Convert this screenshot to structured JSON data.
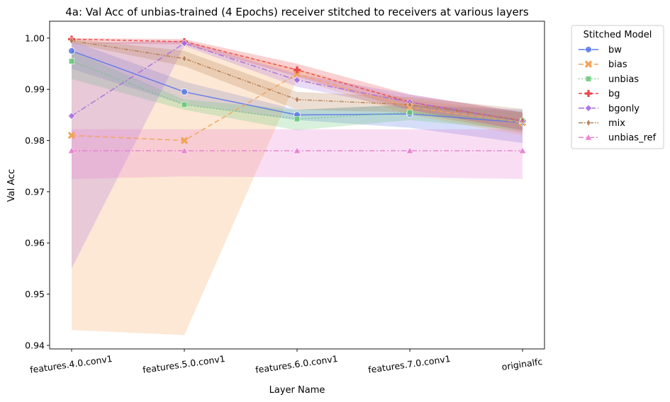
{
  "chart_data": {
    "type": "line",
    "title": "4a: Val Acc of unbias-trained (4 Epochs) receiver stitched to receivers at various layers",
    "xlabel": "Layer Name",
    "ylabel": "Val Acc",
    "categories": [
      "features.4.0.conv1",
      "features.5.0.conv1",
      "features.6.0.conv1",
      "features.7.0.conv1",
      "originalfc"
    ],
    "ylim": [
      0.9393,
      1.0033
    ],
    "yticks": [
      0.94,
      0.95,
      0.96,
      0.97,
      0.98,
      0.99,
      1.0
    ],
    "ytick_labels": [
      "0.94",
      "0.95",
      "0.96",
      "0.97",
      "0.98",
      "0.99",
      "1.00"
    ],
    "grid": false,
    "legend": {
      "title": "Stitched Model",
      "placement": "outside-right"
    },
    "series": [
      {
        "name": "bw",
        "color": "#5b79e6",
        "dash": "",
        "marker": "circle",
        "values": [
          0.9975,
          0.9895,
          0.985,
          0.9852,
          0.9835
        ],
        "lower": [
          0.994,
          0.987,
          0.984,
          0.9825,
          0.9795
        ],
        "upper": [
          0.9995,
          0.9915,
          0.986,
          0.987,
          0.986
        ]
      },
      {
        "name": "bias",
        "color": "#f4a259",
        "dash": "7,4",
        "marker": "x",
        "values": [
          0.981,
          0.98,
          0.993,
          0.9865,
          0.9835
        ],
        "lower": [
          0.943,
          0.942,
          0.992,
          0.985,
          0.981
        ],
        "upper": [
          0.999,
          0.9995,
          0.994,
          0.988,
          0.9855
        ]
      },
      {
        "name": "unbias",
        "color": "#62c872",
        "dash": "1.5,3",
        "marker": "square",
        "values": [
          0.9955,
          0.987,
          0.9842,
          0.9855,
          0.9838
        ],
        "lower": [
          0.992,
          0.986,
          0.982,
          0.984,
          0.982
        ],
        "upper": [
          0.9975,
          0.988,
          0.986,
          0.987,
          0.9855
        ]
      },
      {
        "name": "bg",
        "color": "#e9474d",
        "dash": "5,3",
        "marker": "plus",
        "values": [
          0.9998,
          0.9993,
          0.9938,
          0.9875,
          0.9838
        ],
        "lower": [
          0.999,
          0.9988,
          0.9925,
          0.986,
          0.982
        ],
        "upper": [
          1.0,
          0.9998,
          0.995,
          0.989,
          0.9855
        ]
      },
      {
        "name": "bgonly",
        "color": "#a66be0",
        "dash": "8,3,2,3",
        "marker": "diamond",
        "values": [
          0.9848,
          0.999,
          0.9918,
          0.9875,
          0.9838
        ],
        "lower": [
          0.955,
          0.9985,
          0.9905,
          0.986,
          0.982
        ],
        "upper": [
          0.999,
          0.9995,
          0.993,
          0.989,
          0.9855
        ]
      },
      {
        "name": "mix",
        "color": "#b57a4e",
        "dash": "6,2,1.5,2,1.5,2",
        "marker": "thin-diamond",
        "values": [
          0.9995,
          0.996,
          0.988,
          0.987,
          0.984
        ],
        "lower": [
          0.999,
          0.9945,
          0.986,
          0.9855,
          0.9815
        ],
        "upper": [
          0.9999,
          0.9975,
          0.9895,
          0.9885,
          0.9862
        ]
      },
      {
        "name": "unbias_ref",
        "color": "#e87bcf",
        "dash": "7,3,2,3",
        "marker": "triangle",
        "values": [
          0.978,
          0.978,
          0.978,
          0.978,
          0.978
        ],
        "lower": [
          0.9725,
          0.973,
          0.9728,
          0.9728,
          0.9725
        ],
        "upper": [
          0.9822,
          0.9822,
          0.9822,
          0.9822,
          0.9822
        ]
      }
    ]
  }
}
